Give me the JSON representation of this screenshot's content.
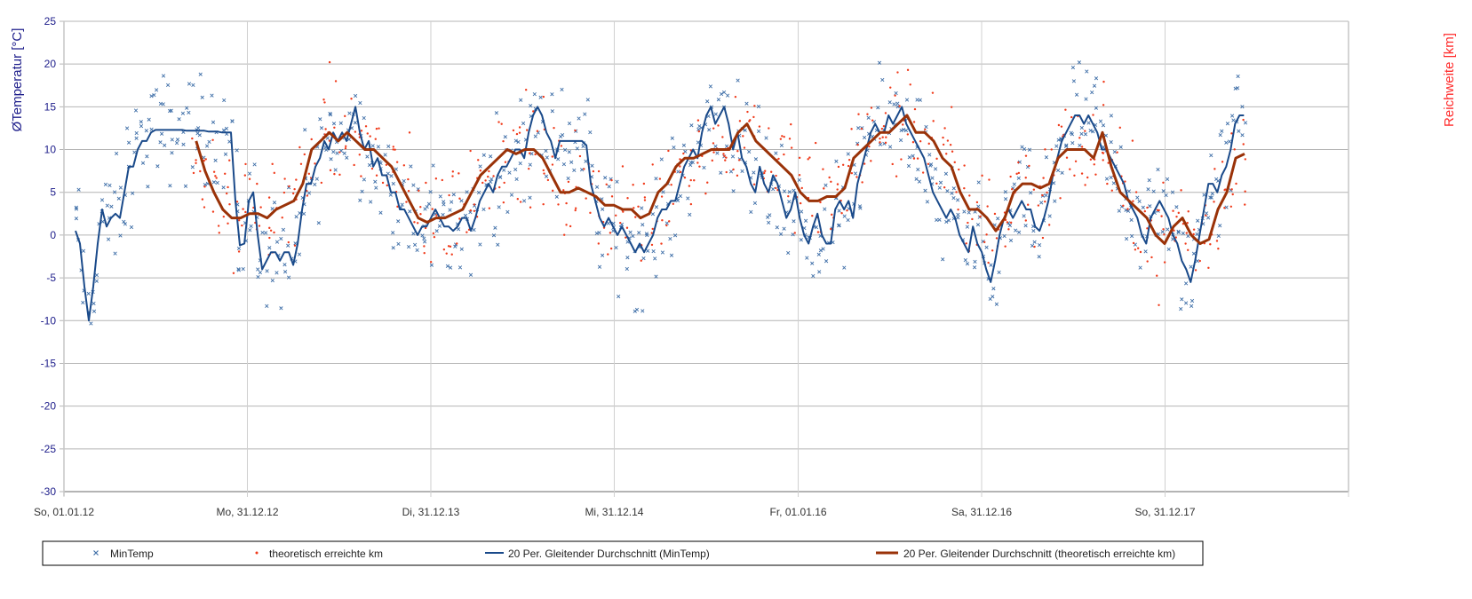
{
  "chart_data": {
    "type": "scatter+line",
    "title": "",
    "ylabel": "ØTemperatur [°C]",
    "ylabel_right": "Reichweite [km]",
    "ylim": [
      -30,
      25
    ],
    "yticks": [
      25,
      20,
      15,
      10,
      5,
      0,
      -5,
      -10,
      -15,
      -20,
      -25,
      -30
    ],
    "x_unit": "days since 01.01.12",
    "xlim": [
      0,
      2556
    ],
    "xticks": [
      {
        "day": 0,
        "label": "So, 01.01.12"
      },
      {
        "day": 365,
        "label": "Mo, 31.12.12"
      },
      {
        "day": 730,
        "label": "Di, 31.12.13"
      },
      {
        "day": 1095,
        "label": "Mi, 31.12.14"
      },
      {
        "day": 1461,
        "label": "Fr, 01.01.16"
      },
      {
        "day": 1826,
        "label": "Sa, 31.12.16"
      },
      {
        "day": 2191,
        "label": "So, 31.12.17"
      }
    ],
    "grid": true,
    "legend_position": "bottom",
    "colors": {
      "mintemp": "#3f6fa8",
      "km": "#f03a1a",
      "ma_mintemp": "#1a4a8a",
      "ma_km": "#9a3208",
      "axis_left": "#1c1c8a",
      "axis_right": "#ff2a2a"
    },
    "scatter_spread": 4.5,
    "series": [
      {
        "name": "MinTemp",
        "kind": "scatter-x",
        "derived_from": "20 Per. Gleitender Durchschnitt (MinTemp)"
      },
      {
        "name": "theoretisch erreichte km",
        "kind": "scatter-dot",
        "derived_from": "20 Per. Gleitender Durchschnitt (theoretisch erreichte km)"
      },
      {
        "name": "20 Per. Gleitender Durchschnitt (MinTemp)",
        "kind": "line",
        "x_start_day": 23,
        "x_step_days": 8.84,
        "values": [
          0.5,
          -1,
          -6,
          -10,
          -6,
          -1,
          3,
          1,
          2,
          2.5,
          2,
          5,
          8,
          8,
          10,
          11,
          11,
          12,
          12.3,
          12.3,
          12.3,
          12.3,
          12.3,
          12.3,
          12.3,
          12.2,
          12.2,
          12.2,
          12.2,
          12.2,
          12.1,
          12.1,
          12.1,
          12,
          12,
          12,
          4,
          -1.2,
          -1,
          4,
          5,
          0,
          -4,
          -3,
          -2,
          -2,
          -3,
          -2,
          -2,
          -3.5,
          -1,
          3,
          6,
          6,
          8,
          9,
          11,
          10,
          12,
          11,
          12,
          11,
          13,
          15,
          12,
          10,
          11,
          8,
          9,
          7,
          7,
          5,
          5,
          3,
          3,
          2,
          1,
          0,
          1,
          1,
          2,
          3,
          2,
          1,
          1,
          0.5,
          1,
          2,
          2,
          0.5,
          2,
          4,
          5,
          6,
          5,
          7,
          8,
          8,
          9,
          10,
          10,
          9,
          12,
          14,
          15,
          14,
          12,
          11,
          9,
          11,
          11,
          11,
          11,
          11,
          11,
          10.5,
          6,
          4,
          2,
          1,
          2,
          1,
          0,
          1,
          0,
          -1,
          -2,
          -1,
          -2,
          -1,
          0,
          2,
          3,
          3,
          4,
          4,
          6,
          8,
          9,
          10,
          9,
          12,
          14,
          15,
          13,
          14,
          15,
          13,
          10,
          12,
          9,
          8,
          6,
          5,
          8,
          6,
          5,
          7,
          6,
          4,
          2,
          3,
          5,
          2,
          0,
          -1,
          1,
          2.5,
          0,
          -1,
          -1,
          3,
          4,
          3,
          4,
          2,
          6,
          8,
          10,
          12,
          13,
          12,
          12,
          14,
          13,
          14,
          15,
          13,
          12,
          11,
          10,
          9,
          7,
          5,
          4,
          3,
          2,
          3,
          2,
          0,
          -1,
          -2,
          1,
          -1,
          -2,
          -4,
          -5.5,
          -3,
          0,
          2,
          3,
          2,
          3,
          4,
          3,
          3,
          1,
          0.5,
          2,
          4,
          7,
          9,
          11,
          12,
          13,
          14,
          14,
          13,
          14,
          13,
          12,
          10,
          10,
          9,
          8,
          7,
          6,
          4,
          3,
          2,
          0,
          -1,
          2,
          3,
          4,
          3,
          2,
          0,
          -1,
          -3,
          -4,
          -5.5,
          -3,
          0,
          3,
          6,
          6,
          5,
          7,
          8,
          10,
          13,
          14,
          14
        ]
      },
      {
        "name": "20 Per. Gleitender Durchschnitt (theoretisch erreichte km)",
        "kind": "line",
        "x_start_day": 263,
        "x_step_days": 17.68,
        "values": [
          11,
          7.5,
          5,
          3,
          2,
          2,
          2.5,
          2.5,
          2,
          3,
          3.5,
          4,
          6,
          10,
          11,
          12,
          11,
          12,
          11,
          10,
          10,
          9,
          8,
          6,
          4,
          2,
          1.5,
          2,
          2,
          2.5,
          3,
          5,
          7,
          8,
          9,
          10,
          9.5,
          10,
          10,
          9,
          7,
          5,
          5,
          5.5,
          5,
          4.5,
          3.5,
          3.5,
          3,
          3,
          2,
          2.5,
          5,
          6,
          8,
          9,
          9,
          9.5,
          10,
          10,
          10,
          12,
          13,
          11,
          10,
          9,
          8,
          7,
          5,
          4,
          4,
          4.5,
          4.5,
          5.5,
          9,
          10,
          11,
          12,
          12,
          13,
          14,
          12,
          12,
          11,
          9,
          8,
          5,
          3,
          3,
          2,
          0.5,
          2,
          5,
          6,
          6,
          5.5,
          6,
          9,
          10,
          10,
          10,
          9,
          12,
          8,
          5,
          4,
          3,
          2,
          0,
          -1,
          1,
          2,
          0,
          -1,
          -0.5,
          3,
          5,
          9,
          9.5
        ]
      }
    ]
  }
}
